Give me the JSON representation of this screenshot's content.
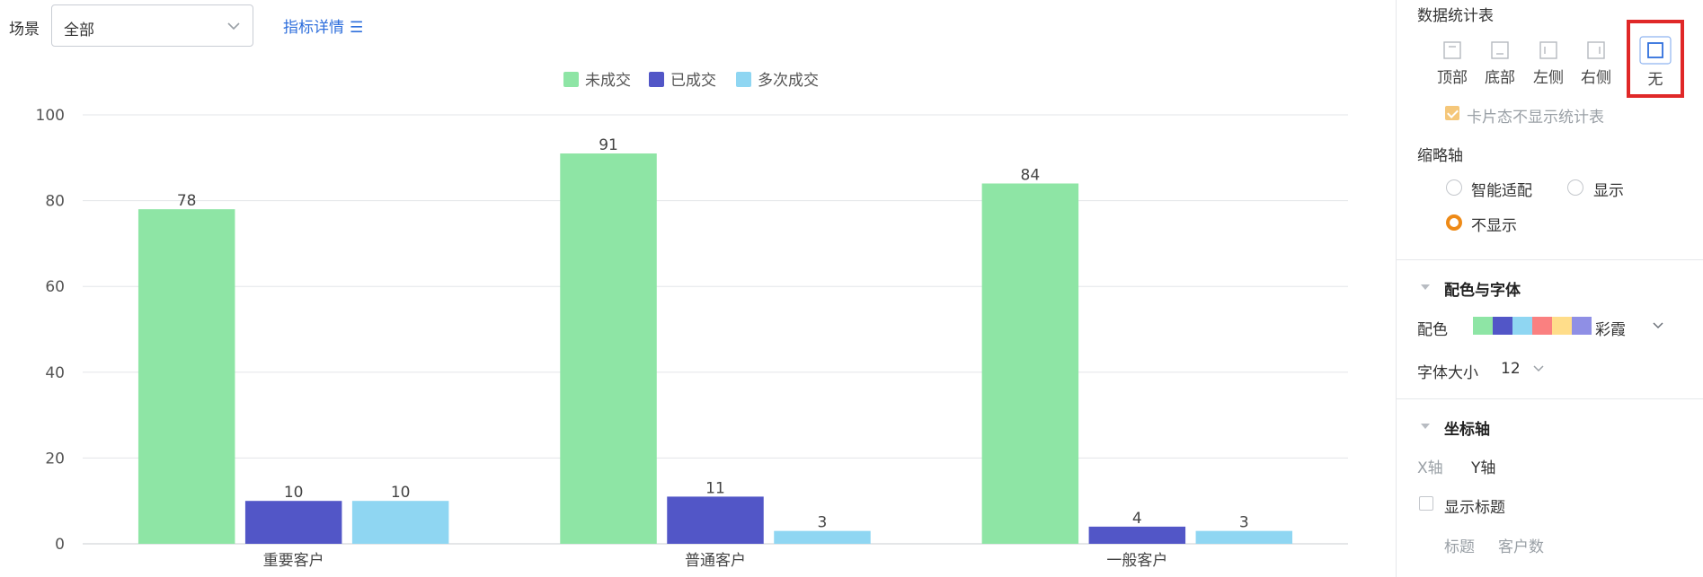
{
  "filter": {
    "scene_label": "场景",
    "scene_value": "全部",
    "detail_link": "指标详情",
    "detail_icon": "list-icon"
  },
  "chart_data": {
    "type": "bar",
    "categories": [
      "重要客户",
      "普通客户",
      "一般客户"
    ],
    "series": [
      {
        "name": "未成交",
        "color": "#8ee5a5",
        "values": [
          78,
          91,
          84
        ]
      },
      {
        "name": "已成交",
        "color": "#5256c7",
        "values": [
          10,
          11,
          4
        ]
      },
      {
        "name": "多次成交",
        "color": "#8fd6f2",
        "values": [
          10,
          3,
          3
        ]
      }
    ],
    "ylim": [
      0,
      100
    ],
    "yticks": [
      "0",
      "20",
      "40",
      "60",
      "80",
      "100"
    ],
    "legend": "top-center",
    "grid": true,
    "data_labels": true
  },
  "panel": {
    "stats_table": {
      "title": "数据统计表",
      "positions": [
        {
          "label": "顶部",
          "icon": "table-top-icon"
        },
        {
          "label": "底部",
          "icon": "table-bottom-icon"
        },
        {
          "label": "左侧",
          "icon": "table-left-icon"
        },
        {
          "label": "右侧",
          "icon": "table-right-icon"
        },
        {
          "label": "无",
          "icon": "table-none-icon",
          "selected": true
        }
      ],
      "card_hide_label": "卡片态不显示统计表"
    },
    "thumbnail_axis": {
      "title": "缩略轴",
      "options": [
        "智能适配",
        "显示",
        "不显示"
      ],
      "selected": "不显示"
    },
    "color_font": {
      "section_title": "配色与字体",
      "color_label": "配色",
      "palette_name": "彩霞",
      "palette": [
        "#8ee5a5",
        "#5256c7",
        "#8fd6f2",
        "#fa8080",
        "#ffdd8a",
        "#8f8fe5"
      ],
      "font_size_label": "字体大小",
      "font_size_value": "12"
    },
    "axis": {
      "section_title": "坐标轴",
      "tabs": [
        "X轴",
        "Y轴"
      ],
      "show_title_label": "显示标题",
      "title_label": "标题",
      "title_placeholder": "客户数"
    }
  }
}
